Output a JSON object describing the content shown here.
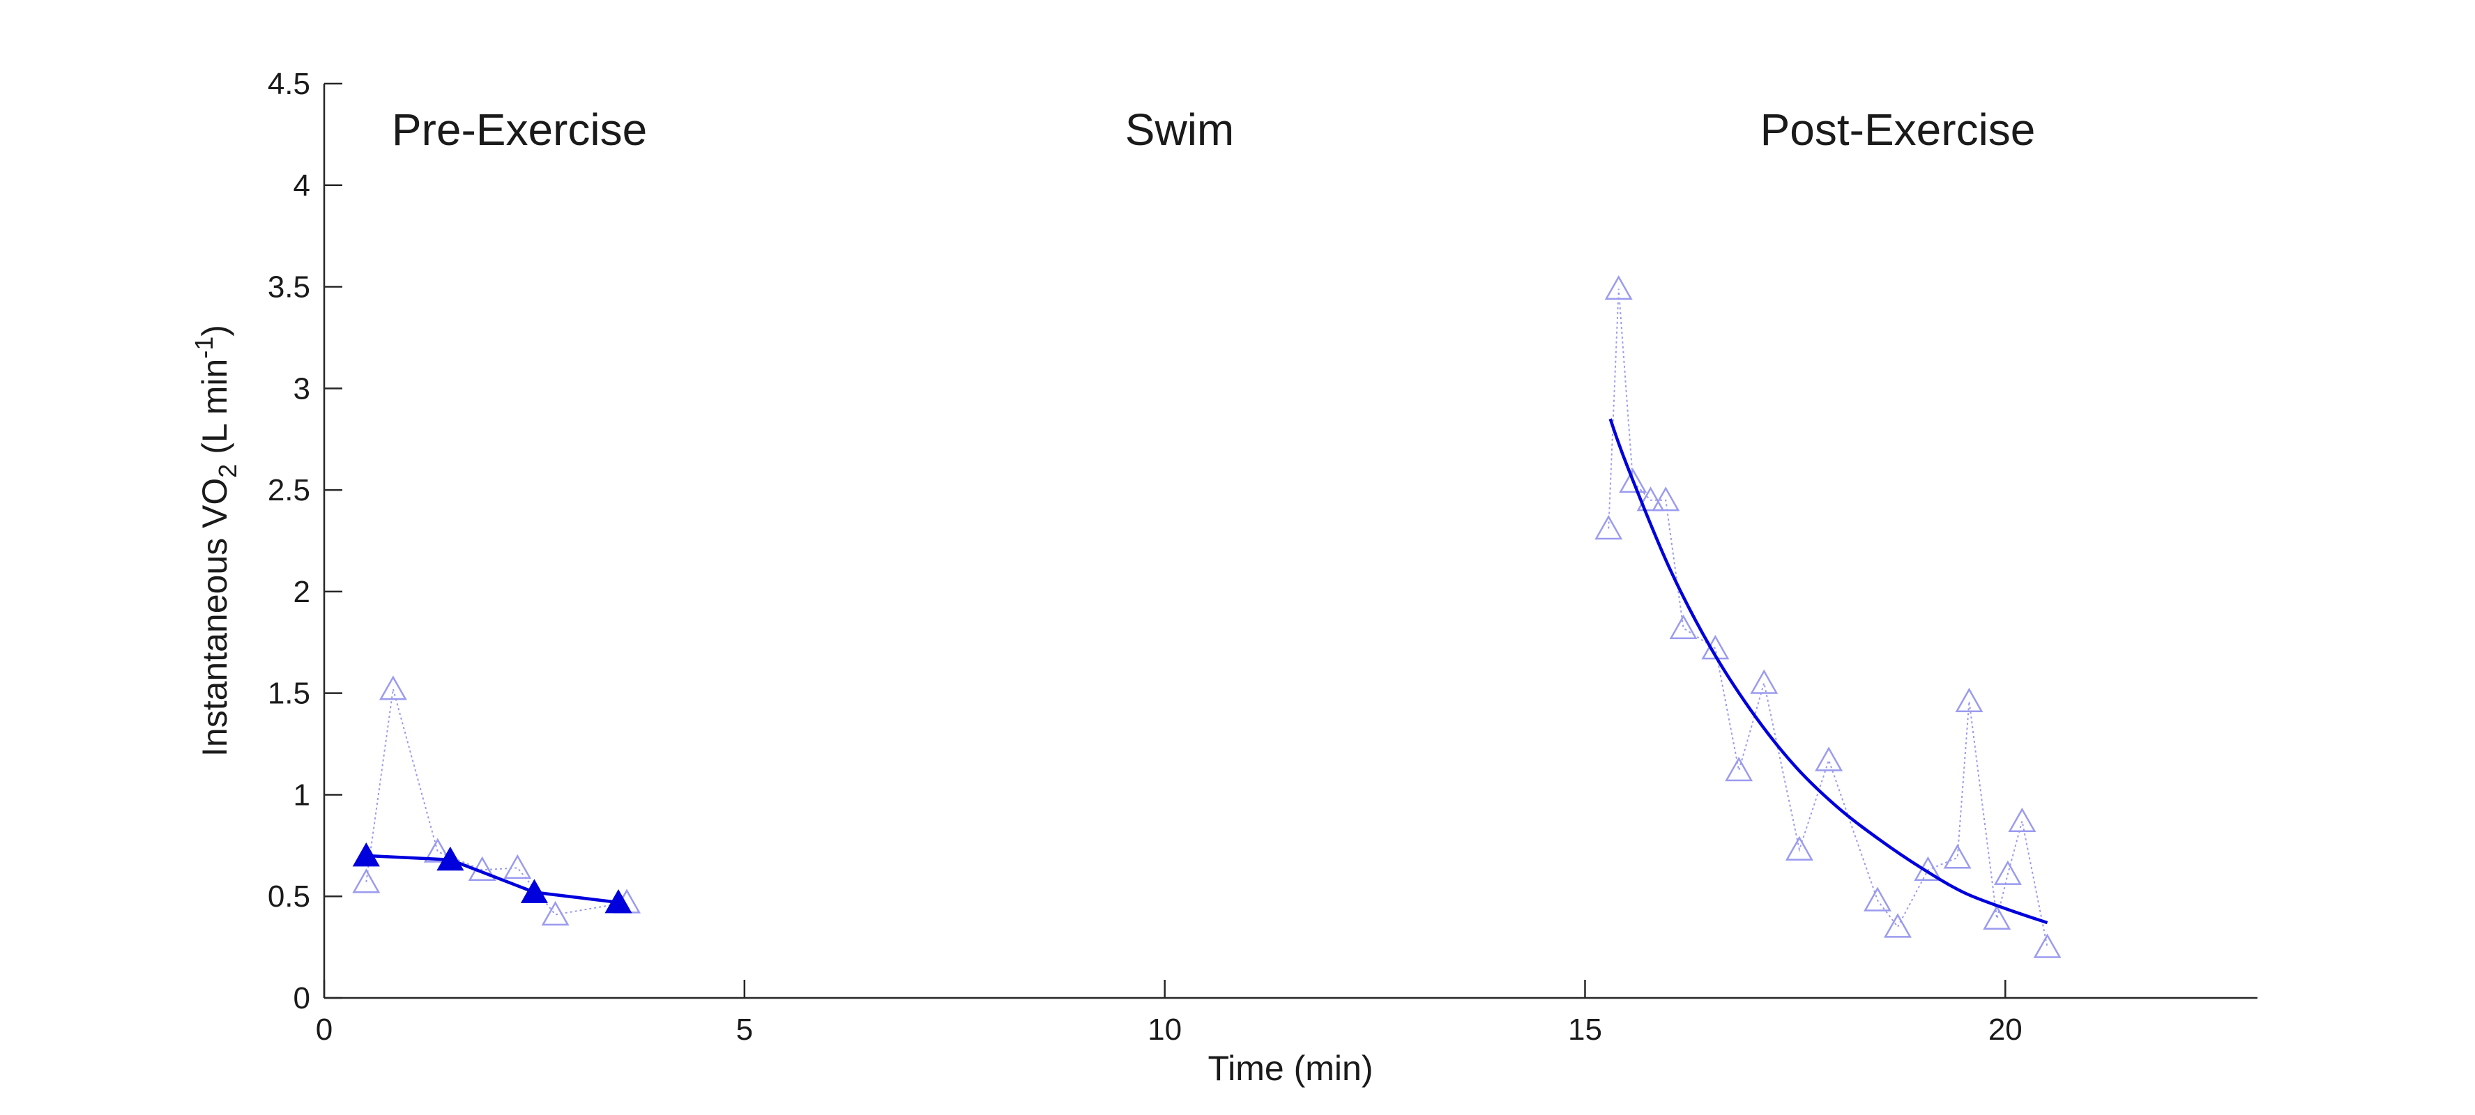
{
  "chart_data": {
    "type": "line",
    "title": "",
    "xlabel": "Time (min)",
    "ylabel": {
      "prefix": "Instantaneous VO",
      "sub": "2",
      "unit_prefix": " (L min",
      "sup": "-1",
      "unit_suffix": ")"
    },
    "xlim": [
      0,
      23
    ],
    "ylim": [
      0,
      4.5
    ],
    "xticks": [
      "0",
      "5",
      "10",
      "15",
      "20"
    ],
    "yticks": [
      "0",
      "0.5",
      "1",
      "1.5",
      "2",
      "2.5",
      "3",
      "3.5",
      "4",
      "4.5"
    ],
    "grid": false,
    "legend": "none",
    "annotations": [
      "Pre-Exercise",
      "Swim",
      "Post-Exercise"
    ],
    "colors": {
      "fit": "#0000dd",
      "raw": "#9b9bef",
      "axis": "#262626"
    },
    "series": [
      {
        "marker": "open-triangle",
        "style": "dotted",
        "x": [
          0.5,
          0.82,
          1.35,
          1.88,
          2.3,
          2.75,
          3.6
        ],
        "y": [
          0.57,
          1.52,
          0.72,
          0.63,
          0.64,
          0.41,
          0.47
        ]
      },
      {
        "marker": "filled-triangle",
        "style": "solid",
        "x": [
          0.5,
          1.5,
          2.5,
          3.5
        ],
        "y": [
          0.7,
          0.68,
          0.52,
          0.47
        ]
      },
      {
        "marker": "open-triangle",
        "style": "dotted",
        "x": [
          15.28,
          15.4,
          15.57,
          15.78,
          15.96,
          16.17,
          16.55,
          16.83,
          17.13,
          17.55,
          17.9,
          18.48,
          18.72,
          19.08,
          19.43,
          19.57,
          19.9,
          20.03,
          20.2,
          20.5
        ],
        "y": [
          2.31,
          3.49,
          2.54,
          2.45,
          2.45,
          1.82,
          1.72,
          1.12,
          1.55,
          0.73,
          1.17,
          0.48,
          0.35,
          0.63,
          0.69,
          1.46,
          0.39,
          0.61,
          0.87,
          0.25
        ]
      },
      {
        "marker": "none",
        "style": "solid",
        "curve": "exponential-fit",
        "x": [
          15.3,
          15.5,
          16.0,
          16.5,
          17.0,
          17.5,
          18.0,
          18.5,
          19.0,
          19.5,
          20.0,
          20.5
        ],
        "y": [
          2.85,
          2.62,
          2.12,
          1.72,
          1.4,
          1.14,
          0.94,
          0.78,
          0.64,
          0.52,
          0.44,
          0.37
        ]
      }
    ]
  }
}
